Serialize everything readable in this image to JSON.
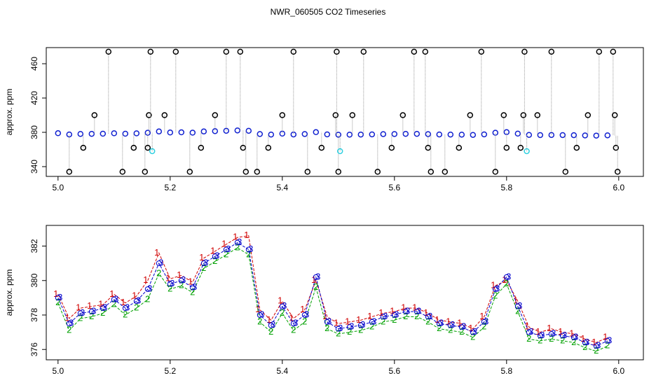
{
  "chart_data": [
    {
      "type": "scatter",
      "title": "NWR_060505  CO2 Timeseries",
      "ylabel": "approx. ppm",
      "xlim": [
        4.979,
        6.044
      ],
      "xticks": [
        {
          "value": 5,
          "label": "5.0"
        },
        5.2,
        5.4,
        5.6,
        5.8,
        {
          "value": 6,
          "label": "6.0"
        }
      ],
      "ylim": [
        328.6,
        478.8
      ],
      "yticks": [
        340,
        380,
        420,
        460
      ],
      "series": [
        {
          "color": "#1020d0",
          "x": [
            5.0,
            5.02,
            5.04,
            5.06,
            5.08,
            5.1,
            5.12,
            5.14,
            5.16,
            5.18,
            5.2,
            5.22,
            5.24,
            5.26,
            5.28,
            5.3,
            5.32,
            5.34,
            5.36,
            5.38,
            5.4,
            5.42,
            5.44,
            5.46,
            5.48,
            5.5,
            5.52,
            5.54,
            5.56,
            5.58,
            5.6,
            5.62,
            5.64,
            5.66,
            5.68,
            5.7,
            5.72,
            5.74,
            5.76,
            5.78,
            5.8,
            5.82,
            5.84,
            5.86,
            5.88,
            5.9,
            5.92,
            5.94,
            5.96,
            5.98
          ],
          "values": [
            379.0,
            377.5,
            378.1,
            378.2,
            378.4,
            378.9,
            378.4,
            378.8,
            379.5,
            381.0,
            379.8,
            380.0,
            379.6,
            381.0,
            381.4,
            381.8,
            382.2,
            381.8,
            378.0,
            377.4,
            378.5,
            377.5,
            378.0,
            380.2,
            377.6,
            377.2,
            377.3,
            377.4,
            377.6,
            377.9,
            378.0,
            378.2,
            378.2,
            377.9,
            377.5,
            377.4,
            377.3,
            377.0,
            377.6,
            379.5,
            380.2,
            378.5,
            377.0,
            376.8,
            376.9,
            376.8,
            376.7,
            376.4,
            376.2,
            376.5
          ]
        },
        {
          "color": "#000000",
          "x": [
            5.02,
            5.045,
            5.065,
            5.09,
            5.115,
            5.135,
            5.155,
            5.16,
            5.162,
            5.165,
            5.19,
            5.21,
            5.235,
            5.255,
            5.28,
            5.3,
            5.325,
            5.33,
            5.335,
            5.355,
            5.375,
            5.4,
            5.42,
            5.445,
            5.47,
            5.495,
            5.497,
            5.5,
            5.525,
            5.545,
            5.57,
            5.595,
            5.615,
            5.635,
            5.655,
            5.66,
            5.665,
            5.69,
            5.715,
            5.735,
            5.755,
            5.78,
            5.795,
            5.8,
            5.825,
            5.83,
            5.832,
            5.855,
            5.88,
            5.905,
            5.925,
            5.945,
            5.965,
            5.99,
            5.993,
            5.995,
            5.998
          ],
          "values": [
            334,
            362,
            400,
            474,
            334,
            362,
            334,
            362,
            400,
            474,
            400,
            474,
            334,
            362,
            400,
            474,
            474,
            362,
            334,
            334,
            362,
            400,
            474,
            334,
            362,
            400,
            474,
            334,
            400,
            474,
            334,
            362,
            400,
            474,
            474,
            362,
            334,
            334,
            362,
            400,
            474,
            334,
            400,
            362,
            362,
            400,
            474,
            400,
            474,
            334,
            362,
            400,
            474,
            474,
            400,
            362,
            334
          ]
        },
        {
          "color": "#30d0e0",
          "x": [
            5.168,
            5.503,
            5.836
          ],
          "values": [
            358,
            358,
            358
          ]
        }
      ]
    },
    {
      "type": "line",
      "ylabel": "approx. ppm",
      "xlim": [
        4.979,
        6.044
      ],
      "xticks": [
        {
          "value": 5,
          "label": "5.0"
        },
        5.2,
        5.4,
        5.6,
        5.8,
        {
          "value": 6,
          "label": "6.0"
        }
      ],
      "ylim": [
        375.4,
        383.2
      ],
      "yticks": [
        376,
        378,
        380,
        382
      ],
      "x": [
        5.0,
        5.02,
        5.04,
        5.06,
        5.08,
        5.1,
        5.12,
        5.14,
        5.16,
        5.18,
        5.2,
        5.22,
        5.24,
        5.26,
        5.28,
        5.3,
        5.32,
        5.34,
        5.36,
        5.38,
        5.4,
        5.42,
        5.44,
        5.46,
        5.48,
        5.5,
        5.52,
        5.54,
        5.56,
        5.58,
        5.6,
        5.62,
        5.64,
        5.66,
        5.68,
        5.7,
        5.72,
        5.74,
        5.76,
        5.78,
        5.8,
        5.82,
        5.84,
        5.86,
        5.88,
        5.9,
        5.92,
        5.94,
        5.96,
        5.98
      ],
      "series": [
        {
          "name": "1",
          "color": "#d00000",
          "values": [
            379.2,
            377.8,
            378.4,
            378.5,
            378.6,
            379.2,
            378.7,
            379.1,
            380.0,
            381.6,
            380.1,
            380.3,
            379.9,
            381.3,
            381.7,
            382.1,
            382.5,
            382.6,
            378.3,
            377.7,
            378.8,
            377.8,
            378.3,
            380.0,
            377.9,
            377.5,
            377.6,
            377.7,
            377.9,
            378.1,
            378.2,
            378.4,
            378.4,
            378.1,
            377.7,
            377.6,
            377.5,
            377.2,
            377.9,
            379.7,
            380.0,
            378.8,
            377.3,
            377.0,
            377.2,
            377.0,
            376.9,
            376.6,
            376.4,
            376.7
          ]
        },
        {
          "name": "2",
          "color": "#00a000",
          "values": [
            378.7,
            377.1,
            377.8,
            377.9,
            378.1,
            378.6,
            378.0,
            378.4,
            378.9,
            380.4,
            379.5,
            379.7,
            379.3,
            380.7,
            381.1,
            381.5,
            381.9,
            381.5,
            377.6,
            377.0,
            378.1,
            377.1,
            377.6,
            379.6,
            377.2,
            376.9,
            377.0,
            377.1,
            377.3,
            377.6,
            377.7,
            377.9,
            377.9,
            377.6,
            377.2,
            377.1,
            377.0,
            376.7,
            377.3,
            379.1,
            379.8,
            378.2,
            376.6,
            376.5,
            376.6,
            376.5,
            376.4,
            376.1,
            375.9,
            376.2
          ]
        },
        {
          "name": "3",
          "color": "#0000cc",
          "values": [
            379.0,
            377.5,
            378.1,
            378.2,
            378.4,
            378.9,
            378.4,
            378.8,
            379.5,
            381.0,
            379.8,
            380.0,
            379.6,
            381.0,
            381.4,
            381.8,
            382.2,
            381.8,
            378.0,
            377.4,
            378.5,
            377.5,
            378.0,
            380.2,
            377.6,
            377.2,
            377.3,
            377.4,
            377.6,
            377.9,
            378.0,
            378.2,
            378.2,
            377.9,
            377.5,
            377.4,
            377.3,
            377.0,
            377.6,
            379.5,
            380.2,
            378.5,
            377.0,
            376.8,
            376.9,
            376.8,
            376.7,
            376.4,
            376.2,
            376.5
          ]
        }
      ]
    }
  ]
}
